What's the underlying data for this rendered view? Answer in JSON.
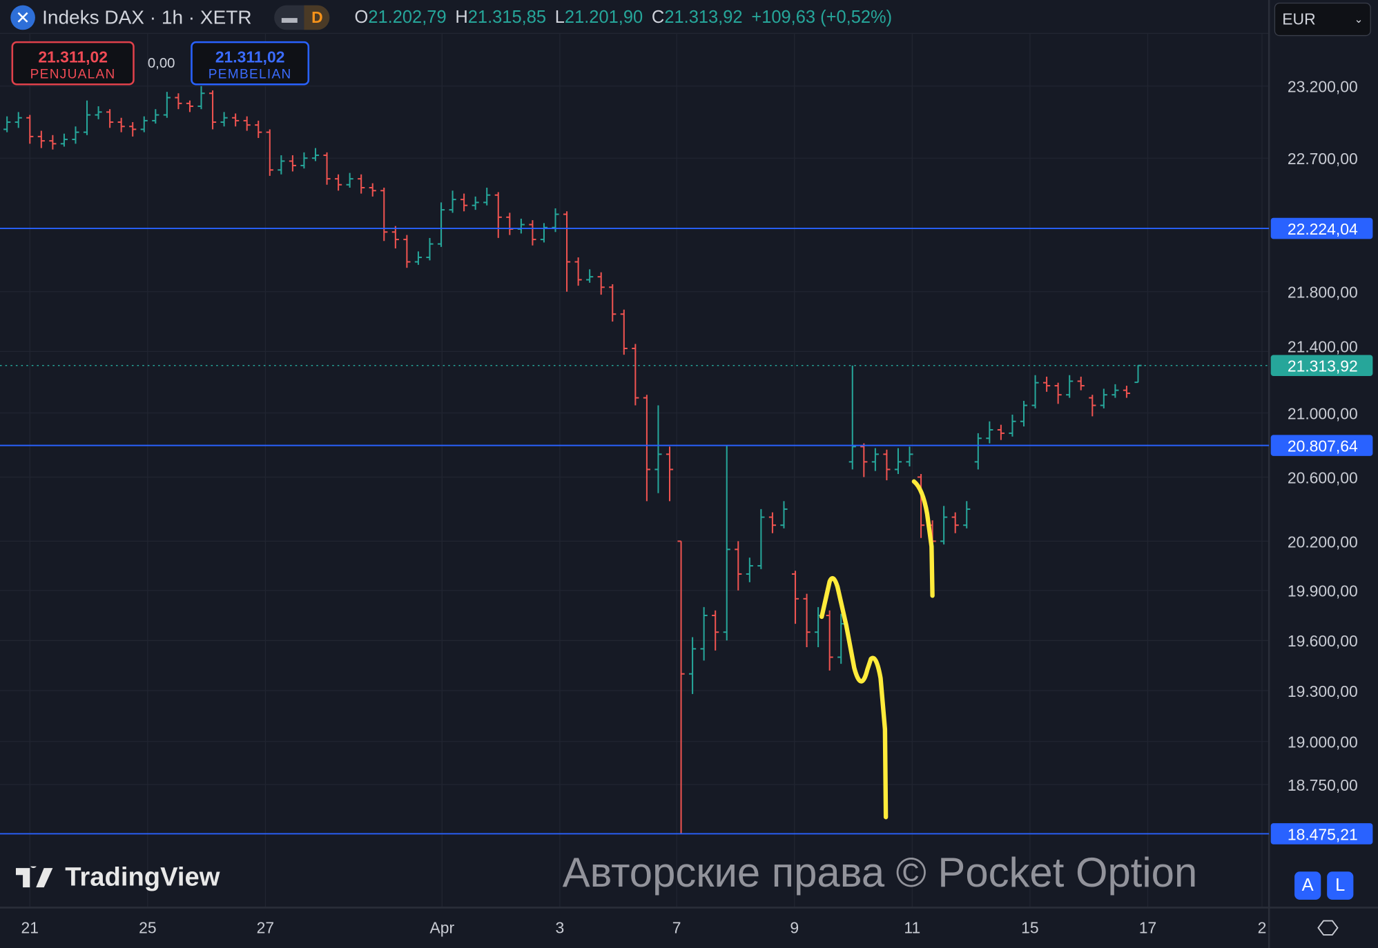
{
  "header": {
    "symbol_icon": "x-close-icon",
    "title": "Indeks DAX · 1h · XETR",
    "mode_badge": "D",
    "ohlc": [
      {
        "k": "O",
        "v": "21.202,79"
      },
      {
        "k": "H",
        "v": "21.315,85"
      },
      {
        "k": "L",
        "v": "21.201,90"
      },
      {
        "k": "C",
        "v": "21.313,92"
      }
    ],
    "change": "+109,63 (+0,52%)"
  },
  "trade": {
    "sell_price": "21.311,02",
    "sell_label": "PENJUALAN",
    "spread": "0,00",
    "buy_price": "21.311,02",
    "buy_label": "PEMBELIAN"
  },
  "currency": {
    "selected": "EUR"
  },
  "logo": "TradingView",
  "watermark": "Авторские права © Pocket Option",
  "scale_buttons": [
    "A",
    "L"
  ],
  "colors": {
    "up": "#26a69a",
    "down": "#ef5350",
    "hline": "#2962ff",
    "drawing": "#ffeb3b",
    "last_price": "#26a69a"
  },
  "chart_data": {
    "type": "ohlc-bar",
    "interval": "1h",
    "grid": true,
    "y_ticks": [
      "23.200,00",
      "22.700,00",
      "21.800,00",
      "21.400,00",
      "21.000,00",
      "20.600,00",
      "20.200,00",
      "19.900,00",
      "19.600,00",
      "19.300,00",
      "19.000,00",
      "18.750,00"
    ],
    "x_ticks": [
      "21",
      "25",
      "27",
      "Apr",
      "3",
      "7",
      "9",
      "11",
      "15",
      "17",
      "2"
    ],
    "horizontal_lines": [
      {
        "value": 22224.04,
        "label": "22.224,04"
      },
      {
        "value": 20807.64,
        "label": "20.807,64"
      },
      {
        "value": 18475.21,
        "label": "18.475,21"
      }
    ],
    "last_price": {
      "value": 21313.92,
      "label": "21.313,92"
    },
    "candles": [
      [
        22900,
        22990,
        22880,
        22950
      ],
      [
        22950,
        23020,
        22910,
        22980
      ],
      [
        22980,
        23000,
        22800,
        22850
      ],
      [
        22850,
        22890,
        22770,
        22820
      ],
      [
        22820,
        22860,
        22760,
        22800
      ],
      [
        22800,
        22870,
        22780,
        22830
      ],
      [
        22830,
        22920,
        22800,
        22880
      ],
      [
        22880,
        23100,
        22860,
        23000
      ],
      [
        23000,
        23060,
        22970,
        23020
      ],
      [
        23020,
        23040,
        22910,
        22950
      ],
      [
        22950,
        22980,
        22880,
        22920
      ],
      [
        22920,
        22950,
        22850,
        22900
      ],
      [
        22900,
        22990,
        22880,
        22960
      ],
      [
        22960,
        23040,
        22940,
        23000
      ],
      [
        23000,
        23160,
        22980,
        23120
      ],
      [
        23120,
        23150,
        23040,
        23080
      ],
      [
        23080,
        23100,
        23020,
        23060
      ],
      [
        23060,
        23200,
        23040,
        23150
      ],
      [
        23150,
        23170,
        22900,
        22950
      ],
      [
        22950,
        23020,
        22920,
        22980
      ],
      [
        22980,
        23010,
        22920,
        22960
      ],
      [
        22960,
        22990,
        22890,
        22930
      ],
      [
        22930,
        22960,
        22840,
        22880
      ],
      [
        22880,
        22900,
        22580,
        22620
      ],
      [
        22620,
        22720,
        22590,
        22680
      ],
      [
        22680,
        22720,
        22610,
        22650
      ],
      [
        22650,
        22740,
        22630,
        22700
      ],
      [
        22700,
        22770,
        22680,
        22720
      ],
      [
        22720,
        22740,
        22520,
        22560
      ],
      [
        22560,
        22590,
        22480,
        22520
      ],
      [
        22520,
        22600,
        22500,
        22560
      ],
      [
        22560,
        22590,
        22460,
        22500
      ],
      [
        22500,
        22530,
        22440,
        22480
      ],
      [
        22480,
        22500,
        22140,
        22200
      ],
      [
        22200,
        22240,
        22090,
        22150
      ],
      [
        22150,
        22180,
        21960,
        22000
      ],
      [
        22000,
        22070,
        21980,
        22030
      ],
      [
        22030,
        22160,
        22010,
        22120
      ],
      [
        22120,
        22400,
        22100,
        22350
      ],
      [
        22350,
        22480,
        22330,
        22420
      ],
      [
        22420,
        22460,
        22340,
        22380
      ],
      [
        22380,
        22440,
        22350,
        22400
      ],
      [
        22400,
        22500,
        22380,
        22450
      ],
      [
        22450,
        22470,
        22160,
        22300
      ],
      [
        22300,
        22330,
        22180,
        22220
      ],
      [
        22220,
        22290,
        22190,
        22250
      ],
      [
        22250,
        22280,
        22110,
        22150
      ],
      [
        22150,
        22260,
        22130,
        22230
      ],
      [
        22230,
        22360,
        22200,
        22320
      ],
      [
        22320,
        22340,
        21800,
        22000
      ],
      [
        22000,
        22030,
        21840,
        21880
      ],
      [
        21880,
        21950,
        21860,
        21900
      ],
      [
        21900,
        21930,
        21780,
        21830
      ],
      [
        21830,
        21850,
        21600,
        21650
      ],
      [
        21650,
        21680,
        21380,
        21420
      ],
      [
        21420,
        21450,
        21050,
        21100
      ],
      [
        21100,
        21120,
        20450,
        20650
      ],
      [
        20650,
        21050,
        20500,
        20750
      ],
      [
        20750,
        20800,
        20450,
        20650
      ],
      [
        20200,
        20200,
        18475,
        19400
      ],
      [
        19400,
        19620,
        19280,
        19550
      ],
      [
        19550,
        19800,
        19480,
        19750
      ],
      [
        19750,
        19780,
        19540,
        19650
      ],
      [
        19650,
        20807,
        19600,
        20150
      ],
      [
        20150,
        20200,
        19900,
        20000
      ],
      [
        20000,
        20100,
        19950,
        20050
      ],
      [
        20050,
        20400,
        20030,
        20350
      ],
      [
        20350,
        20380,
        20250,
        20300
      ],
      [
        20300,
        20450,
        20280,
        20400
      ],
      [
        20000,
        20020,
        19700,
        19850
      ],
      [
        19850,
        19880,
        19560,
        19650
      ],
      [
        19650,
        19800,
        19560,
        19750
      ],
      [
        19750,
        19780,
        19420,
        19500
      ],
      [
        19500,
        19760,
        19460,
        19700
      ],
      [
        20700,
        21313,
        20650,
        20800
      ],
      [
        20800,
        20820,
        20600,
        20700
      ],
      [
        20700,
        20790,
        20640,
        20750
      ],
      [
        20750,
        20780,
        20580,
        20650
      ],
      [
        20650,
        20790,
        20620,
        20700
      ],
      [
        20700,
        20800,
        20670,
        20750
      ],
      [
        20600,
        20620,
        20220,
        20300
      ],
      [
        20300,
        20330,
        20130,
        20200
      ],
      [
        20200,
        20420,
        20180,
        20350
      ],
      [
        20350,
        20380,
        20250,
        20300
      ],
      [
        20300,
        20450,
        20280,
        20400
      ],
      [
        20700,
        20880,
        20650,
        20850
      ],
      [
        20850,
        20950,
        20820,
        20900
      ],
      [
        20900,
        20930,
        20840,
        20880
      ],
      [
        20880,
        20990,
        20860,
        20950
      ],
      [
        20950,
        21080,
        20920,
        21050
      ],
      [
        21050,
        21250,
        21030,
        21200
      ],
      [
        21200,
        21240,
        21140,
        21180
      ],
      [
        21180,
        21200,
        21060,
        21120
      ],
      [
        21120,
        21250,
        21100,
        21210
      ],
      [
        21210,
        21240,
        21150,
        21180
      ],
      [
        21100,
        21120,
        20980,
        21050
      ],
      [
        21050,
        21160,
        21030,
        21120
      ],
      [
        21120,
        21190,
        21100,
        21150
      ],
      [
        21150,
        21180,
        21100,
        21130
      ],
      [
        21202.79,
        21315.85,
        21201.9,
        21313.92
      ]
    ]
  }
}
